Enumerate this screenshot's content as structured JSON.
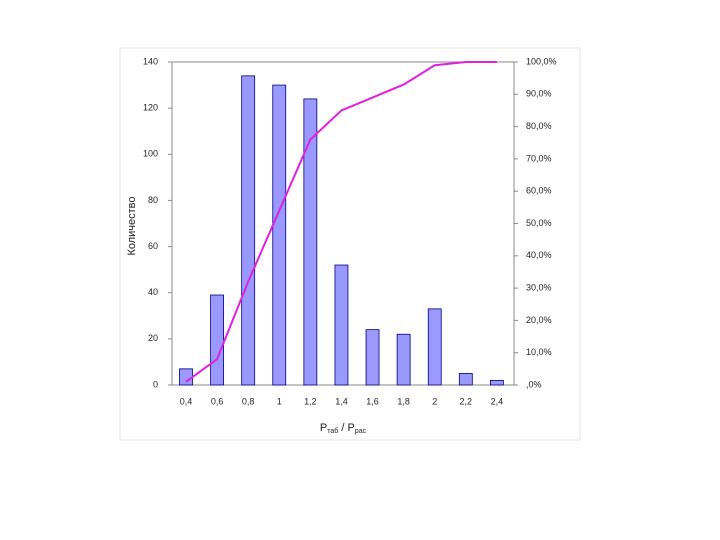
{
  "chart_data": {
    "type": "bar",
    "x_label": {
      "p1": "P",
      "s1": "таб",
      "sep": " / ",
      "p2": "P",
      "s2": "рас"
    },
    "y_label": "Количество",
    "categories": [
      "0,4",
      "0,6",
      "0,8",
      "1",
      "1,2",
      "1,4",
      "1,6",
      "1,8",
      "2",
      "2,2",
      "2,4"
    ],
    "series": [
      {
        "type": "bar",
        "color": "#9999ff",
        "values": [
          7,
          39,
          134,
          130,
          124,
          52,
          24,
          22,
          33,
          5,
          2
        ]
      },
      {
        "type": "line",
        "axis": "y2",
        "color": "#e020e0",
        "values": [
          1,
          8,
          32,
          54,
          76,
          85,
          89,
          93,
          99,
          100,
          100
        ]
      }
    ],
    "ylim": [
      0,
      140
    ],
    "yticks": [
      0,
      20,
      40,
      60,
      80,
      100,
      120,
      140
    ],
    "y2lim": [
      0,
      100
    ],
    "y2ticks": [
      {
        "value": 0,
        "label": ",0%"
      },
      {
        "value": 10,
        "label": "10,0%"
      },
      {
        "value": 20,
        "label": "20,0%"
      },
      {
        "value": 30,
        "label": "30,0%"
      },
      {
        "value": 40,
        "label": "40,0%"
      },
      {
        "value": 50,
        "label": "50,0%"
      },
      {
        "value": 60,
        "label": "60,0%"
      },
      {
        "value": 70,
        "label": "70,0%"
      },
      {
        "value": 80,
        "label": "80,0%"
      },
      {
        "value": 90,
        "label": "90,0%"
      },
      {
        "value": 100,
        "label": "100,0%"
      }
    ]
  }
}
